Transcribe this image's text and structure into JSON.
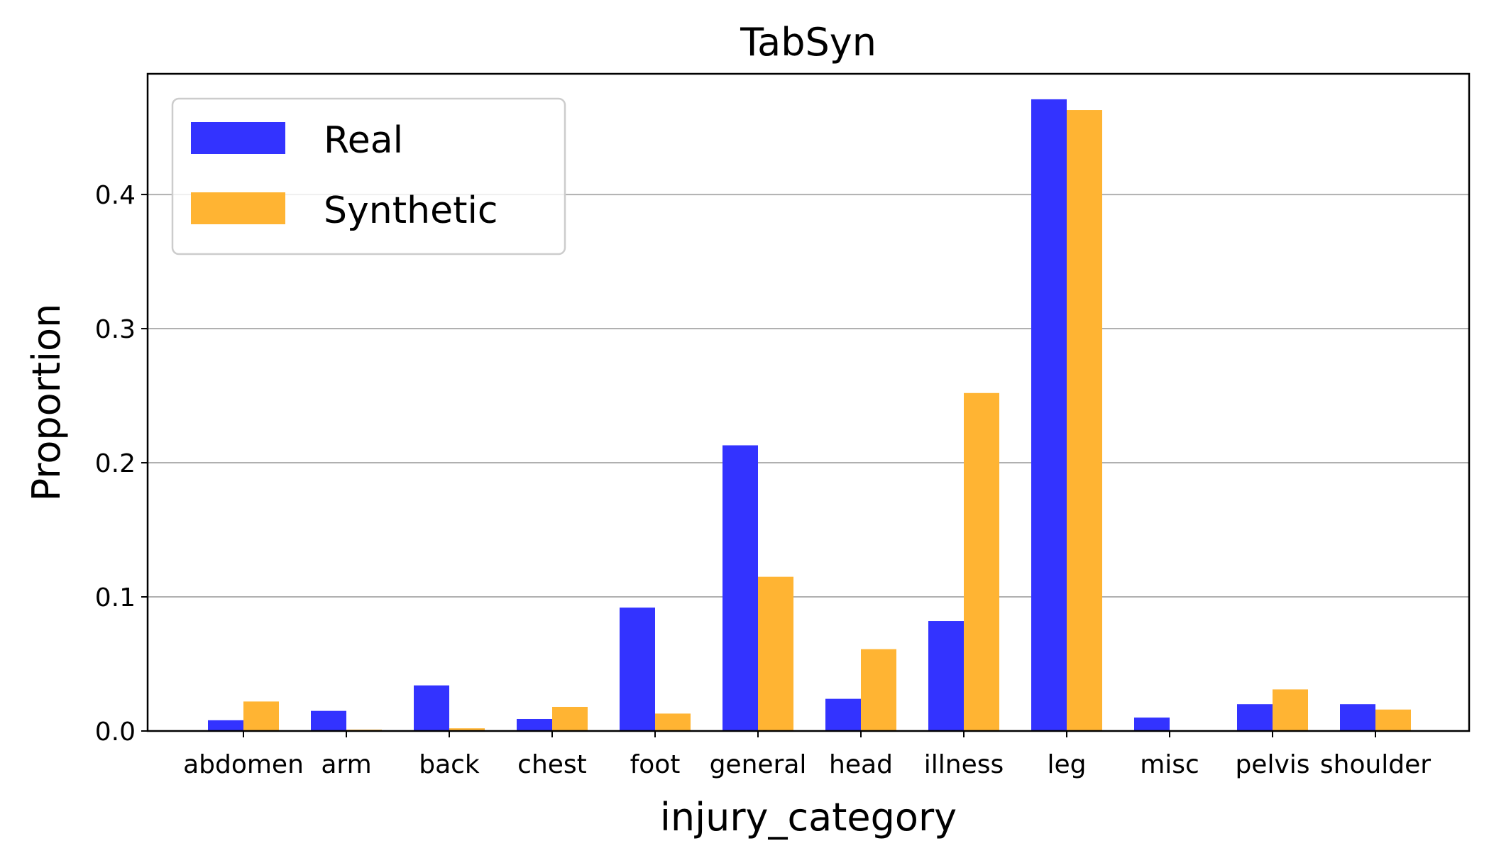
{
  "chart_data": {
    "type": "bar",
    "title": "TabSyn",
    "xlabel": "injury_category",
    "ylabel": "Proportion",
    "categories": [
      "abdomen",
      "arm",
      "back",
      "chest",
      "foot",
      "general",
      "head",
      "illness",
      "leg",
      "misc",
      "pelvis",
      "shoulder"
    ],
    "series": [
      {
        "name": "Real",
        "color": "#3333ff",
        "values": [
          0.008,
          0.015,
          0.034,
          0.009,
          0.092,
          0.213,
          0.024,
          0.082,
          0.471,
          0.01,
          0.02,
          0.02
        ]
      },
      {
        "name": "Synthetic",
        "color": "#ffb433",
        "values": [
          0.022,
          0.001,
          0.002,
          0.018,
          0.013,
          0.115,
          0.061,
          0.252,
          0.463,
          0.0,
          0.031,
          0.016
        ]
      }
    ],
    "ylim": [
      0,
      0.49
    ],
    "yticks": [
      "0.0",
      "0.1",
      "0.2",
      "0.3",
      "0.4"
    ],
    "grid": "y",
    "legend_position": "upper-left"
  }
}
